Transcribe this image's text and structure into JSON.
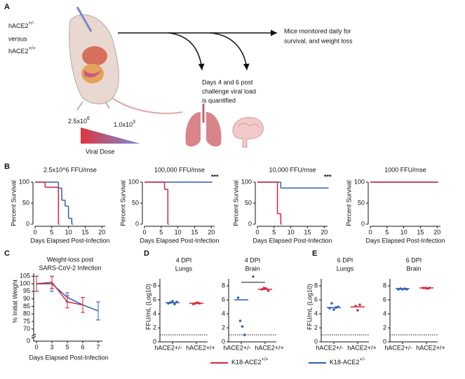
{
  "panel_labels": [
    "A",
    "B",
    "C",
    "D",
    "E"
  ],
  "schematic": {
    "genotype_1": {
      "base": "hACE2",
      "sup": "+/-"
    },
    "versus": "versus",
    "genotype_2": {
      "base": "hACE2",
      "sup": "+/+"
    },
    "dose_high": {
      "base": "2.5x10",
      "sup": "6"
    },
    "dose_low": {
      "base": "1.0x10",
      "sup": "3"
    },
    "dose_label": "Viral Dose",
    "monitor_text": [
      "Mice monitored daily for",
      "survival, and weight loss"
    ],
    "quantify_text": [
      "Days 4 and 6 post",
      "challenge viral load",
      "is quantified"
    ]
  },
  "chart_data": [
    {
      "type": "step",
      "title": "2.5x10^6 FFU/mse",
      "ylabel": "Percent Survival",
      "xlabel": "Days Elapsed Post-Infection",
      "xlim": [
        0,
        21
      ],
      "ylim": [
        0,
        100
      ],
      "xticks": [
        0,
        5,
        10,
        15,
        20
      ],
      "yticks": [
        0,
        50,
        100
      ],
      "series": [
        {
          "color": "#2f5fb3",
          "x": [
            0,
            7,
            8,
            9,
            10,
            11
          ],
          "values": [
            100,
            86,
            57,
            43,
            14,
            0
          ]
        },
        {
          "color": "#d7263d",
          "x": [
            0,
            3,
            7
          ],
          "values": [
            100,
            88,
            0
          ]
        }
      ]
    },
    {
      "type": "step",
      "title": "100,000 FFU/mse",
      "ylabel": "Percent Survival",
      "xlabel": "Days Elapsed Post-Infection",
      "xlim": [
        0,
        21
      ],
      "ylim": [
        0,
        100
      ],
      "xticks": [
        0,
        5,
        10,
        15,
        20
      ],
      "yticks": [
        0,
        50,
        100
      ],
      "annotation": "***",
      "series": [
        {
          "color": "#2f5fb3",
          "x": [
            0,
            20
          ],
          "values": [
            100,
            100
          ]
        },
        {
          "color": "#d7263d",
          "x": [
            0,
            6,
            7
          ],
          "values": [
            100,
            83,
            0
          ]
        }
      ]
    },
    {
      "type": "step",
      "title": "10,000 FFU/mse",
      "ylabel": "Percent Survival",
      "xlabel": "Days Elapsed Post-Infection",
      "xlim": [
        0,
        21
      ],
      "ylim": [
        0,
        100
      ],
      "xticks": [
        0,
        5,
        10,
        15,
        20
      ],
      "yticks": [
        0,
        50,
        100
      ],
      "annotation": "***",
      "series": [
        {
          "color": "#2f5fb3",
          "x": [
            0,
            7,
            21
          ],
          "values": [
            100,
            86,
            86
          ]
        },
        {
          "color": "#d7263d",
          "x": [
            0,
            6,
            7
          ],
          "values": [
            100,
            25,
            0
          ]
        }
      ]
    },
    {
      "type": "step",
      "title": "1000 FFU/mse",
      "ylabel": "Percent Survival",
      "xlabel": "Days Elapsed Post-Infection",
      "xlim": [
        0,
        21
      ],
      "ylim": [
        0,
        100
      ],
      "xticks": [
        0,
        5,
        10,
        15,
        20
      ],
      "yticks": [
        0,
        50,
        100
      ],
      "series": [
        {
          "color": "#2f5fb3",
          "x": [
            0,
            20
          ],
          "values": [
            100,
            100
          ]
        },
        {
          "color": "#d7263d",
          "x": [
            0,
            20
          ],
          "values": [
            100,
            100
          ]
        }
      ]
    },
    {
      "type": "line",
      "title_lines": [
        "Weight-loss post",
        "SARS-CoV-2 Infection"
      ],
      "ylabel": "% Initial Weight",
      "xlabel": "Days Elapsed Post-Infection",
      "categories": [
        "0",
        "3",
        "5",
        "6",
        "7"
      ],
      "ylim": [
        68,
        107
      ],
      "yticks": [
        70,
        75,
        80,
        85,
        90,
        95,
        100,
        105
      ],
      "y_break_label": "0",
      "series": [
        {
          "color": "#2f5fb3",
          "values": [
            100,
            100,
            91,
            86,
            82
          ],
          "errors": [
            5,
            5,
            3,
            5,
            6
          ]
        },
        {
          "color": "#d7263d",
          "values": [
            100,
            101,
            88,
            86,
            null
          ],
          "errors": [
            5,
            4,
            4,
            5,
            null
          ]
        }
      ]
    },
    {
      "type": "dot",
      "title_lines": [
        "4 DPI",
        "Lungs"
      ],
      "ylabel": "FFU/mL (Log10)",
      "categories": [
        "hACE2+/-",
        "hACE2+/+"
      ],
      "colors": [
        "#2f5fb3",
        "#d7263d"
      ],
      "points": [
        [
          5.5,
          5.6,
          5.8,
          5.4,
          5.7
        ],
        [
          5.4,
          5.5,
          5.6,
          5.5
        ]
      ],
      "centers": [
        5.6,
        5.5
      ],
      "ylim": [
        0,
        9
      ],
      "yticks": [
        0,
        2,
        4,
        6,
        8
      ],
      "reference_line": 1
    },
    {
      "type": "dot",
      "title_lines": [
        "4 DPI",
        "Brain"
      ],
      "categories": [
        "hACE2+/-",
        "hACE2+/+"
      ],
      "colors": [
        "#2f5fb3",
        "#d7263d"
      ],
      "points": [
        [
          6.3,
          3,
          2.2,
          1
        ],
        [
          7.5,
          7.7,
          7.6,
          7.3
        ]
      ],
      "centers": [
        6,
        7.5
      ],
      "ylim": [
        0,
        9
      ],
      "yticks": [
        0,
        2,
        4,
        6,
        8
      ],
      "reference_line": 1,
      "annotation": "*"
    },
    {
      "type": "dot",
      "title_lines": [
        "6 DPI",
        "Lungs"
      ],
      "ylabel": "FFU/mL (Log10)",
      "categories": [
        "hACE2+/-",
        "hACE2+/+"
      ],
      "colors": [
        "#2f5fb3",
        "#d7263d"
      ],
      "points": [
        [
          4.8,
          5.5,
          4.6,
          4.9,
          5
        ],
        [
          5.1,
          4.5,
          5.3
        ]
      ],
      "centers": [
        4.9,
        5
      ],
      "ylim": [
        0,
        9
      ],
      "yticks": [
        0,
        2,
        4,
        6,
        8
      ],
      "reference_line": 1
    },
    {
      "type": "dot",
      "title_lines": [
        "6 DPI",
        "Brain"
      ],
      "categories": [
        "hACE2+/-",
        "hACE2+/+"
      ],
      "colors": [
        "#2f5fb3",
        "#d7263d"
      ],
      "points": [
        [
          7.5,
          7.6,
          7.5,
          7.6,
          7.5
        ],
        [
          7.7,
          7.7,
          7.6,
          7.7
        ]
      ],
      "centers": [
        7.6,
        7.7
      ],
      "ylim": [
        0,
        9
      ],
      "yticks": [
        0,
        2,
        4,
        6,
        8
      ],
      "reference_line": 1
    }
  ],
  "legend": [
    {
      "name": "K18-ACE2",
      "sup": "+/+",
      "color": "#d7263d"
    },
    {
      "name": "K18-ACE2",
      "sup": "+/-",
      "color": "#2f5fb3"
    }
  ]
}
